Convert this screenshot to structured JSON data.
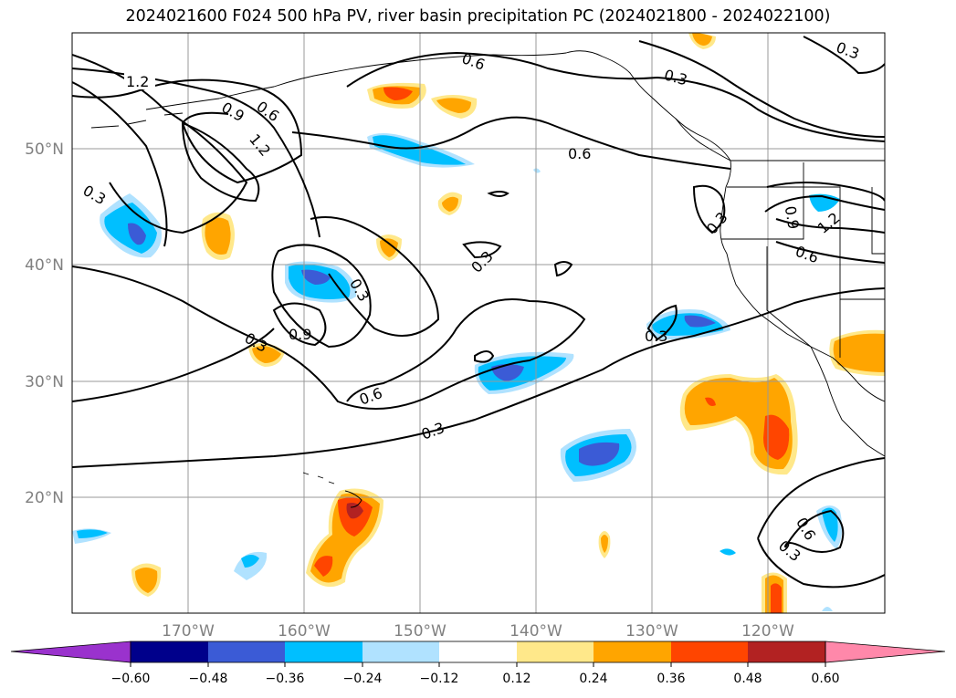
{
  "title": "2024021600 F024 500 hPa PV, river basin precipitation PC (2024021800 - 2024022100)",
  "map": {
    "lon_range": [
      -180,
      -110
    ],
    "lat_range": [
      10,
      60
    ],
    "grid": true,
    "lat_labels": [
      "50°N",
      "40°N",
      "30°N",
      "20°N"
    ],
    "lon_labels": [
      "170°W",
      "160°W",
      "150°W",
      "140°W",
      "130°W",
      "120°W"
    ],
    "contour_labels": [
      "1.2",
      "0.9",
      "0.6",
      "1.2",
      "0.3",
      "0.6",
      "0.3",
      "0.6",
      "0.3",
      "0.3",
      "0.9",
      "0.3",
      "0.3",
      "0.6",
      "0.3",
      "0.3",
      "0.9",
      "1.2",
      "0.6",
      "0.3",
      "0.6"
    ]
  },
  "colorbar": {
    "ticks": [
      "−0.60",
      "−0.48",
      "−0.36",
      "−0.24",
      "−0.12",
      "0.12",
      "0.24",
      "0.36",
      "0.48",
      "0.60"
    ],
    "colors": [
      "#9a32cd",
      "#00008b",
      "#3b5bd6",
      "#00bfff",
      "#b0e2ff",
      "#ffffff",
      "#ffe88a",
      "#ffa500",
      "#ff4500",
      "#b22222",
      "#ff88aa"
    ]
  },
  "palette": {
    "neg_light": "#b0e2ff",
    "neg_mid": "#00bfff",
    "neg_dark": "#3b5bd6",
    "pos_light": "#ffe88a",
    "pos_mid": "#ffa500",
    "pos_dark": "#ff4500",
    "pos_max": "#b22222"
  }
}
